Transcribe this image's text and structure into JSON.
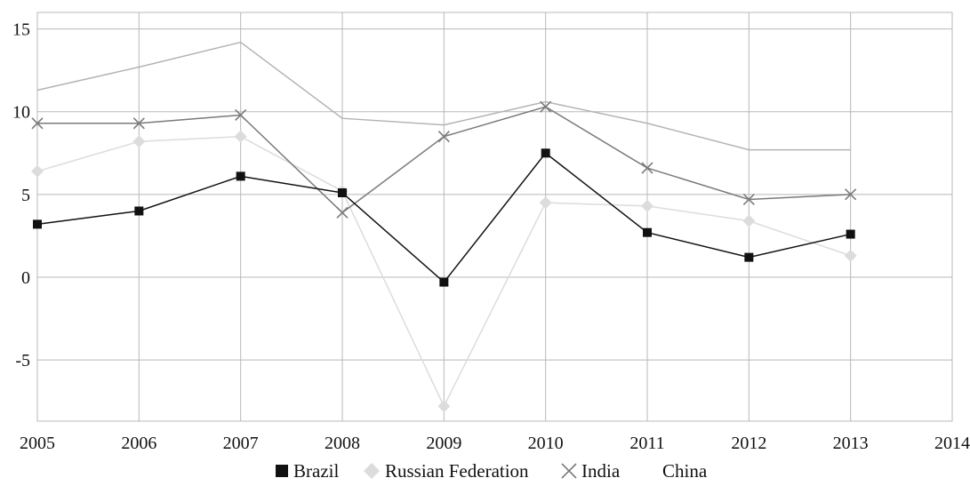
{
  "chart_data": {
    "type": "line",
    "x": [
      2005,
      2006,
      2007,
      2008,
      2009,
      2010,
      2011,
      2012,
      2013
    ],
    "xlim": [
      2005,
      2014
    ],
    "ylim": [
      -8.7,
      16
    ],
    "x_ticks": [
      2005,
      2006,
      2007,
      2008,
      2009,
      2010,
      2011,
      2012,
      2013,
      2014
    ],
    "y_ticks": [
      15,
      10,
      5,
      0,
      -5
    ],
    "x_tick_labels": [
      "2005",
      "2006",
      "2007",
      "2008",
      "2009",
      "2010",
      "2011",
      "2012",
      "2013",
      "2014"
    ],
    "y_tick_labels": [
      "15",
      "10",
      "5",
      "0",
      "-5"
    ],
    "grid": true,
    "legend_position": "bottom",
    "series": [
      {
        "name": "Brazil",
        "values": [
          3.2,
          4.0,
          6.1,
          5.1,
          -0.3,
          7.5,
          2.7,
          1.2,
          2.6
        ],
        "color": "#111111",
        "marker": "square"
      },
      {
        "name": "Russian Federation",
        "values": [
          6.4,
          8.2,
          8.5,
          5.2,
          -7.8,
          4.5,
          4.3,
          3.4,
          1.3
        ],
        "color": "#dcdcdc",
        "marker": "diamond"
      },
      {
        "name": "India",
        "values": [
          9.3,
          9.3,
          9.8,
          3.9,
          8.5,
          10.3,
          6.6,
          4.7,
          5.0
        ],
        "color": "#7a7a7a",
        "marker": "x"
      },
      {
        "name": "China",
        "values": [
          11.3,
          12.7,
          14.2,
          9.6,
          9.2,
          10.6,
          9.3,
          7.7,
          7.7
        ],
        "color": "#b4b4b4",
        "marker": "none"
      }
    ]
  }
}
